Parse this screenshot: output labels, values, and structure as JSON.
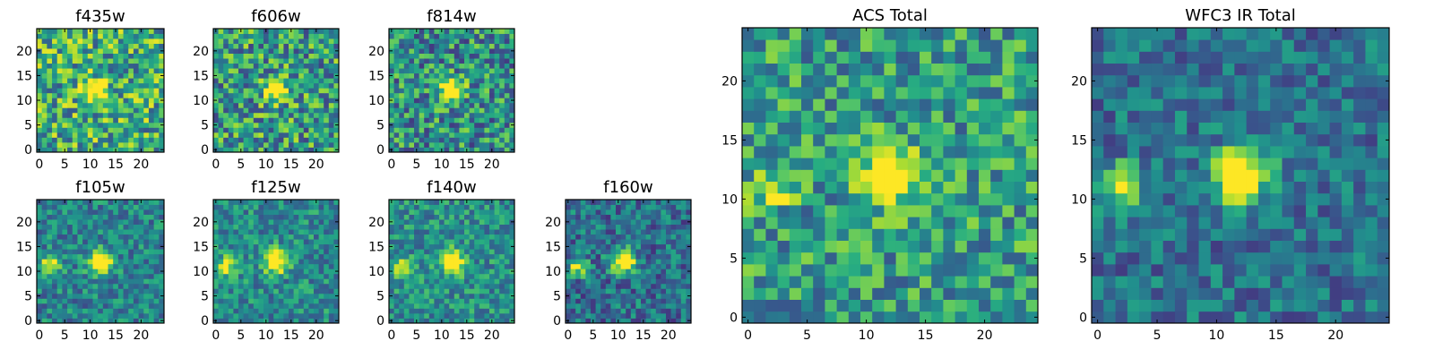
{
  "chart_data": [
    {
      "type": "heatmap",
      "title": "f435w",
      "grid_size": 25,
      "xlim": [
        0,
        24
      ],
      "ylim": [
        0,
        24
      ],
      "x_ticks": [
        0,
        5,
        10,
        15,
        20
      ],
      "y_ticks": [
        0,
        5,
        10,
        15,
        20
      ],
      "source_center": [
        11,
        12
      ],
      "source_peak": 0.6,
      "noise": 0.35,
      "base": 0.62,
      "seed": 11
    },
    {
      "type": "heatmap",
      "title": "f606w",
      "grid_size": 25,
      "xlim": [
        0,
        24
      ],
      "ylim": [
        0,
        24
      ],
      "x_ticks": [
        0,
        5,
        10,
        15,
        20
      ],
      "y_ticks": [
        0,
        5,
        10,
        15,
        20
      ],
      "source_center": [
        12,
        12
      ],
      "source_peak": 0.7,
      "noise": 0.35,
      "base": 0.55,
      "seed": 23
    },
    {
      "type": "heatmap",
      "title": "f814w",
      "grid_size": 25,
      "xlim": [
        0,
        24
      ],
      "ylim": [
        0,
        24
      ],
      "x_ticks": [
        0,
        5,
        10,
        15,
        20
      ],
      "y_ticks": [
        0,
        5,
        10,
        15,
        20
      ],
      "source_center": [
        12,
        12
      ],
      "source_peak": 0.8,
      "noise": 0.33,
      "base": 0.5,
      "seed": 37
    },
    {
      "type": "heatmap",
      "title": "f105w",
      "grid_size": 25,
      "xlim": [
        0,
        24
      ],
      "ylim": [
        0,
        24
      ],
      "x_ticks": [
        0,
        5,
        10,
        15,
        20
      ],
      "y_ticks": [
        0,
        5,
        10,
        15,
        20
      ],
      "source_center": [
        12,
        12
      ],
      "source_peak": 0.85,
      "secondary_center": [
        2,
        11
      ],
      "secondary_peak": 0.6,
      "noise": 0.22,
      "base": 0.45,
      "seed": 41
    },
    {
      "type": "heatmap",
      "title": "f125w",
      "grid_size": 25,
      "xlim": [
        0,
        24
      ],
      "ylim": [
        0,
        24
      ],
      "x_ticks": [
        0,
        5,
        10,
        15,
        20
      ],
      "y_ticks": [
        0,
        5,
        10,
        15,
        20
      ],
      "source_center": [
        12,
        12
      ],
      "source_peak": 0.8,
      "secondary_center": [
        2,
        11
      ],
      "secondary_peak": 0.6,
      "noise": 0.22,
      "base": 0.48,
      "seed": 53
    },
    {
      "type": "heatmap",
      "title": "f140w",
      "grid_size": 25,
      "xlim": [
        0,
        24
      ],
      "ylim": [
        0,
        24
      ],
      "x_ticks": [
        0,
        5,
        10,
        15,
        20
      ],
      "y_ticks": [
        0,
        5,
        10,
        15,
        20
      ],
      "source_center": [
        12,
        12
      ],
      "source_peak": 0.8,
      "secondary_center": [
        2,
        11
      ],
      "secondary_peak": 0.5,
      "noise": 0.22,
      "base": 0.5,
      "seed": 67
    },
    {
      "type": "heatmap",
      "title": "f160w",
      "grid_size": 25,
      "xlim": [
        0,
        24
      ],
      "ylim": [
        0,
        24
      ],
      "x_ticks": [
        0,
        5,
        10,
        15,
        20
      ],
      "y_ticks": [
        0,
        5,
        10,
        15,
        20
      ],
      "source_center": [
        11,
        12
      ],
      "source_peak": 0.9,
      "secondary_center": [
        2,
        11
      ],
      "secondary_peak": 0.6,
      "noise": 0.24,
      "base": 0.38,
      "seed": 79
    },
    {
      "type": "heatmap",
      "title": "ACS Total",
      "grid_size": 25,
      "xlim": [
        0,
        24
      ],
      "ylim": [
        0,
        24
      ],
      "x_ticks": [
        0,
        5,
        10,
        15,
        20
      ],
      "y_ticks": [
        0,
        5,
        10,
        15,
        20
      ],
      "source_center": [
        12,
        12
      ],
      "source_peak": 0.8,
      "secondary_center": [
        2,
        11
      ],
      "secondary_peak": 0.35,
      "noise": 0.28,
      "base": 0.55,
      "seed": 97
    },
    {
      "type": "heatmap",
      "title": "WFC3 IR Total",
      "grid_size": 25,
      "xlim": [
        0,
        24
      ],
      "ylim": [
        0,
        24
      ],
      "x_ticks": [
        0,
        5,
        10,
        15,
        20
      ],
      "y_ticks": [
        0,
        5,
        10,
        15,
        20
      ],
      "source_center": [
        12,
        12
      ],
      "source_peak": 0.85,
      "secondary_center": [
        2,
        11
      ],
      "secondary_peak": 0.6,
      "noise": 0.2,
      "base": 0.38,
      "seed": 113
    }
  ],
  "colormap": "viridis"
}
